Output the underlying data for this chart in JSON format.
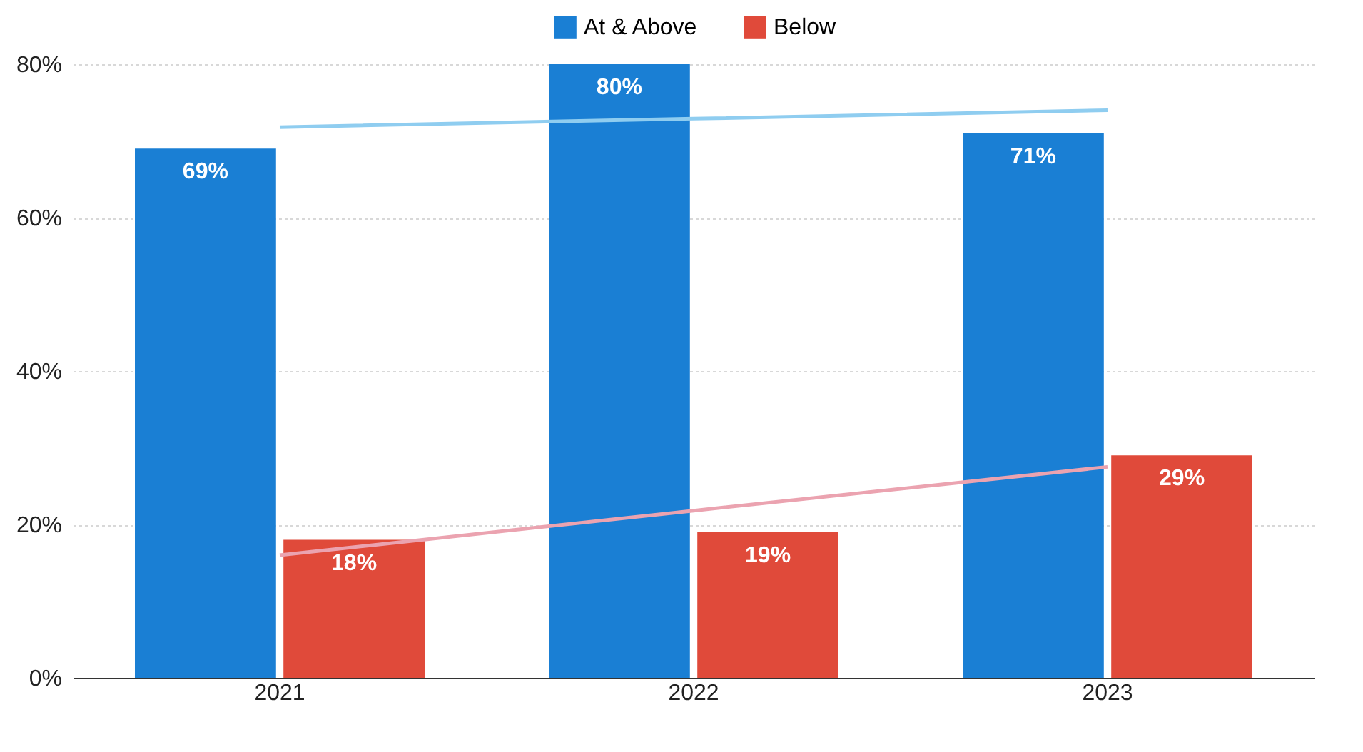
{
  "chart_data": {
    "type": "bar",
    "categories": [
      "2021",
      "2022",
      "2023"
    ],
    "series": [
      {
        "name": "At & Above",
        "color": "#1a7fd4",
        "values": [
          69,
          80,
          71
        ]
      },
      {
        "name": "Below",
        "color": "#e04a3a",
        "values": [
          18,
          19,
          29
        ]
      },
      {
        "type": "line",
        "color": "#8fcdf0",
        "values": [
          71.8,
          72.9,
          74.0
        ]
      },
      {
        "type": "line",
        "color": "#eba3b0",
        "values": [
          16.0,
          21.8,
          27.5
        ]
      }
    ],
    "ylim": [
      0,
      80
    ],
    "yticks": [
      {
        "value": 0,
        "label": "0%"
      },
      {
        "value": 20,
        "label": "20%"
      },
      {
        "value": 40,
        "label": "40%"
      },
      {
        "value": 60,
        "label": "60%"
      },
      {
        "value": 80,
        "label": "80%"
      }
    ],
    "value_labels": [
      [
        "69%",
        "80%",
        "71%"
      ],
      [
        "18%",
        "19%",
        "29%"
      ]
    ],
    "grid": "y",
    "legend": "top"
  }
}
